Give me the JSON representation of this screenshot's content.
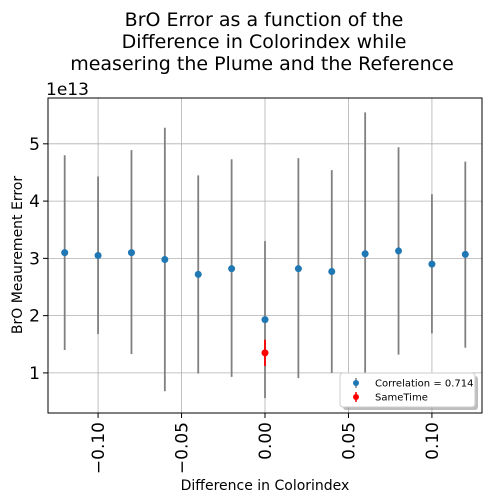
{
  "chart_data": {
    "type": "scatter",
    "title_lines": [
      "BrO Error as a function of the",
      "Difference in Colorindex while",
      "measering the Plume and the Reference"
    ],
    "xlabel": "Difference in Colorindex",
    "ylabel": "BrO Meaurement Error",
    "y_offset_label": "1e13",
    "xlim": [
      -0.13,
      0.13
    ],
    "ylim": [
      0.3,
      5.8
    ],
    "x_ticks": [
      -0.1,
      -0.05,
      0.0,
      0.05,
      0.1
    ],
    "x_tick_labels": [
      "−0.10",
      "−0.05",
      "0.00",
      "0.05",
      "0.10"
    ],
    "y_ticks": [
      1,
      2,
      3,
      4,
      5
    ],
    "y_tick_labels": [
      "1",
      "2",
      "3",
      "4",
      "5"
    ],
    "grid": true,
    "legend_position": "lower-right",
    "series": [
      {
        "name": "Correlation = 0.714",
        "color": "#1f77b4",
        "errorbar_color": "#808080",
        "points": [
          {
            "x": -0.12,
            "y": 3.1,
            "lo": 1.4,
            "hi": 4.8
          },
          {
            "x": -0.1,
            "y": 3.05,
            "lo": 1.68,
            "hi": 4.43
          },
          {
            "x": -0.08,
            "y": 3.1,
            "lo": 1.33,
            "hi": 4.89
          },
          {
            "x": -0.06,
            "y": 2.98,
            "lo": 0.68,
            "hi": 5.28
          },
          {
            "x": -0.04,
            "y": 2.72,
            "lo": 0.99,
            "hi": 4.45
          },
          {
            "x": -0.02,
            "y": 2.82,
            "lo": 0.93,
            "hi": 4.73
          },
          {
            "x": 0.0,
            "y": 1.93,
            "lo": 0.56,
            "hi": 3.3
          },
          {
            "x": 0.02,
            "y": 2.82,
            "lo": 0.91,
            "hi": 4.75
          },
          {
            "x": 0.04,
            "y": 2.77,
            "lo": 1.0,
            "hi": 4.54
          },
          {
            "x": 0.06,
            "y": 3.08,
            "lo": 0.61,
            "hi": 5.55
          },
          {
            "x": 0.08,
            "y": 3.13,
            "lo": 1.32,
            "hi": 4.94
          },
          {
            "x": 0.1,
            "y": 2.9,
            "lo": 1.69,
            "hi": 4.12
          },
          {
            "x": 0.12,
            "y": 3.07,
            "lo": 1.44,
            "hi": 4.69
          }
        ]
      },
      {
        "name": "SameTime",
        "color": "#ff0000",
        "errorbar_color": "#ff0000",
        "points": [
          {
            "x": 0.0,
            "y": 1.35,
            "lo": 1.12,
            "hi": 1.58
          }
        ]
      }
    ]
  }
}
